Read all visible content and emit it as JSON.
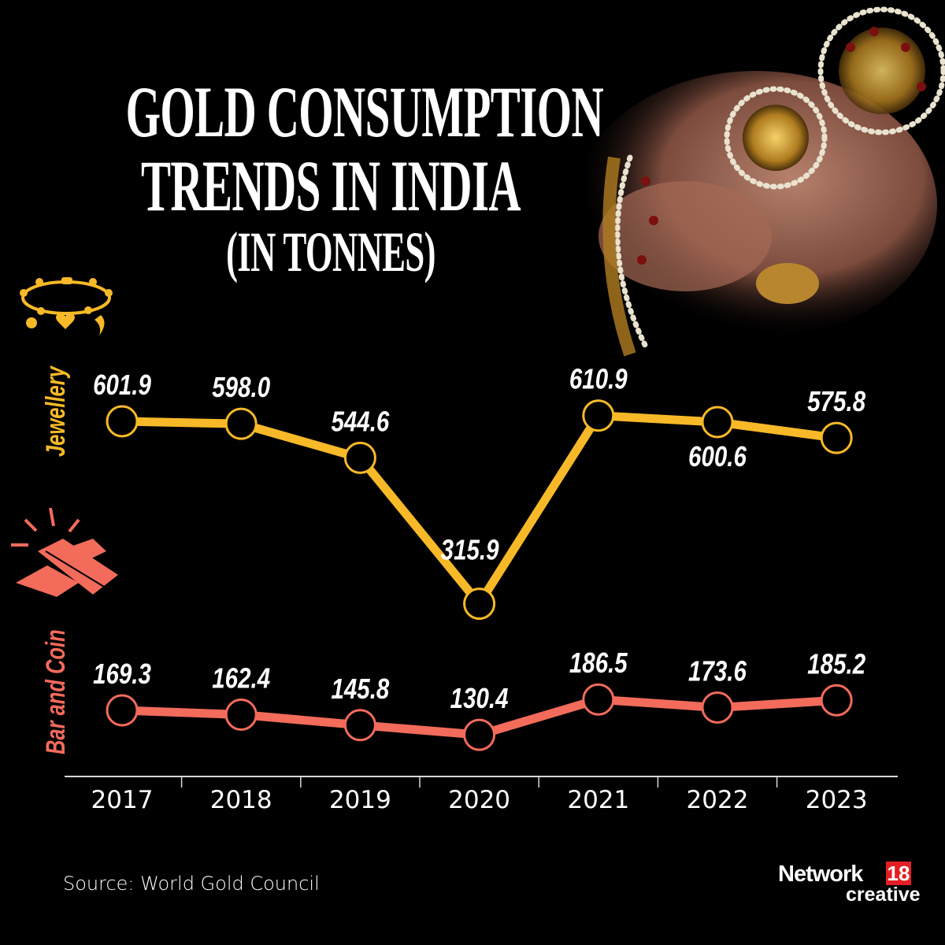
{
  "title": {
    "line1": "GOLD CONSUMPTION",
    "line2": "TRENDS IN INDIA",
    "line3": "(IN TONNES)"
  },
  "source": "Source: World Gold Council",
  "logo": {
    "network": "Network",
    "number": "18",
    "creative": "creative"
  },
  "colors": {
    "background": "#000000",
    "jewellery": "#f7b928",
    "bar_coin": "#f26b5b",
    "text": "#ffffff",
    "axis": "#d9d9d9",
    "logo_red": "#e31e24"
  },
  "icons": {
    "jewellery": "bracelet-icon",
    "bar_coin": "gold-bars-icon"
  },
  "chart_data": {
    "type": "line",
    "title": "GOLD CONSUMPTION TRENDS IN INDIA (IN TONNES)",
    "xlabel": "",
    "ylabel": "",
    "categories": [
      "2017",
      "2018",
      "2019",
      "2020",
      "2021",
      "2022",
      "2023"
    ],
    "grid": false,
    "series": [
      {
        "name": "Jewellery",
        "values": [
          601.9,
          598.0,
          544.6,
          315.9,
          610.9,
          600.6,
          575.8
        ],
        "labels": [
          "601.9",
          "598.0",
          "544.6",
          "315.9",
          "610.9",
          "600.6",
          "575.8"
        ]
      },
      {
        "name": "Bar and Coin",
        "values": [
          169.3,
          162.4,
          145.8,
          130.4,
          186.5,
          173.6,
          185.2
        ],
        "labels": [
          "169.3",
          "162.4",
          "145.8",
          "130.4",
          "186.5",
          "173.6",
          "185.2"
        ]
      }
    ]
  }
}
